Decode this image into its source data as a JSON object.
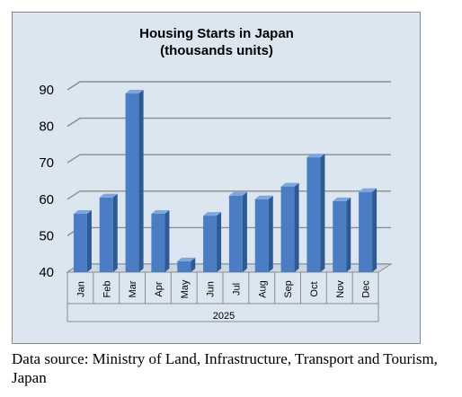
{
  "chart_data": {
    "type": "bar",
    "title": "Housing Starts in Japan",
    "subtitle": "(thousands units)",
    "group_label": "2025",
    "categories": [
      "Jan",
      "Feb",
      "Mar",
      "Apr",
      "May",
      "Jun",
      "Jul",
      "Aug",
      "Sep",
      "Oct",
      "Nov",
      "Dec"
    ],
    "values": [
      56,
      60.5,
      89,
      56,
      43,
      55.5,
      61,
      60,
      63.5,
      71.5,
      59.5,
      62
    ],
    "ylim": [
      40,
      90
    ],
    "yticks": [
      40,
      50,
      60,
      70,
      80,
      90
    ],
    "grid": true,
    "colors": {
      "bar_front": "#4a7dc3",
      "bar_side": "#2e5a93",
      "bar_top": "#7ea6dc",
      "grid": "#8c8c8c",
      "background": "#dce6f1"
    }
  },
  "source_note": "Data source: Ministry of Land, Infrastructure, Transport and Tourism, Japan"
}
